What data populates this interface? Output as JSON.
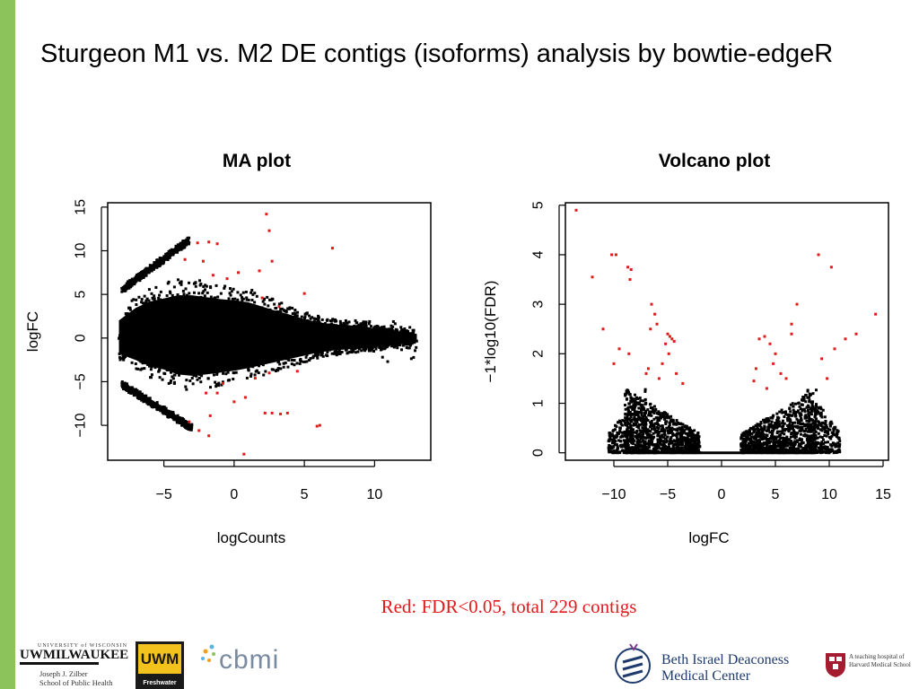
{
  "slide": {
    "title": "Sturgeon M1 vs. M2 DE contigs (isoforms) analysis by bowtie-edgeR",
    "caption": "Red: FDR<0.05, total 229 contigs",
    "accent_color": "#8cc35a",
    "highlight_color": "#e01b1b"
  },
  "chart_data": [
    {
      "type": "scatter",
      "title": "MA plot",
      "xlabel": "logCounts",
      "ylabel": "logFC",
      "xlim": [
        -9,
        14
      ],
      "ylim": [
        -14,
        15.5
      ],
      "xticks": [
        -5,
        0,
        5,
        10
      ],
      "yticks": [
        -10,
        -5,
        0,
        5,
        10,
        15
      ],
      "series": [
        {
          "color": "#000000",
          "density_envelope": {
            "x": [
              -8.2,
              -7,
              -6,
              -5,
              -4,
              -3,
              -2,
              -1,
              0,
              1,
              2,
              3,
              4,
              5,
              6,
              7,
              8,
              9,
              10,
              11,
              12,
              13
            ],
            "upper": [
              2.8,
              4.8,
              5.8,
              6.3,
              6.8,
              6.8,
              6.5,
              6.2,
              6.0,
              5.7,
              5.0,
              4.3,
              3.7,
              3.0,
              2.5,
              2.2,
              2.0,
              2.0,
              1.5,
              1.2,
              1.0,
              0.5
            ],
            "lower": [
              -2.5,
              -3.5,
              -4.5,
              -5.0,
              -5.8,
              -6.0,
              -5.8,
              -5.5,
              -5.2,
              -4.8,
              -4.3,
              -3.8,
              -3.3,
              -2.8,
              -2.3,
              -2.0,
              -1.8,
              -1.7,
              -1.4,
              -1.2,
              -0.9,
              -0.5
            ]
          },
          "upper_band": {
            "x": [
              -8.0,
              -3.2
            ],
            "y": [
              5.5,
              11.2
            ]
          },
          "lower_band": {
            "x": [
              -8.0,
              -3.0
            ],
            "y": [
              -5.3,
              -10.3
            ]
          }
        },
        {
          "color": "#e01b1b",
          "points": [
            {
              "x": 2.3,
              "y": 14.2
            },
            {
              "x": 2.5,
              "y": 12.3
            },
            {
              "x": 7.0,
              "y": 10.3
            },
            {
              "x": -2.6,
              "y": 10.9
            },
            {
              "x": -1.8,
              "y": 11.0
            },
            {
              "x": -1.2,
              "y": 10.8
            },
            {
              "x": 2.7,
              "y": 8.8
            },
            {
              "x": 1.8,
              "y": 7.7
            },
            {
              "x": 0.3,
              "y": 7.5
            },
            {
              "x": -1.5,
              "y": 7.2
            },
            {
              "x": -0.5,
              "y": 6.8
            },
            {
              "x": 5.0,
              "y": 5.1
            },
            {
              "x": 2.0,
              "y": 4.6
            },
            {
              "x": 3.2,
              "y": 3.6
            },
            {
              "x": -0.8,
              "y": -5.2
            },
            {
              "x": 1.5,
              "y": -4.6
            },
            {
              "x": 2.5,
              "y": -4.0
            },
            {
              "x": -2.0,
              "y": -6.3
            },
            {
              "x": -1.2,
              "y": -6.3
            },
            {
              "x": 0.8,
              "y": -6.8
            },
            {
              "x": 2.2,
              "y": -8.6
            },
            {
              "x": 2.7,
              "y": -8.6
            },
            {
              "x": 3.3,
              "y": -8.7
            },
            {
              "x": 3.8,
              "y": -8.6
            },
            {
              "x": 5.9,
              "y": -10.1
            },
            {
              "x": 6.1,
              "y": -10.0
            },
            {
              "x": -1.7,
              "y": -8.9
            },
            {
              "x": -3.2,
              "y": -9.6
            },
            {
              "x": -2.5,
              "y": -10.6
            },
            {
              "x": -1.8,
              "y": -11.2
            },
            {
              "x": 0.7,
              "y": -13.3
            },
            {
              "x": -3.5,
              "y": 9.0
            },
            {
              "x": -2.2,
              "y": 8.8
            },
            {
              "x": 4.5,
              "y": -3.8
            },
            {
              "x": 0.0,
              "y": -7.3
            }
          ]
        }
      ]
    },
    {
      "type": "scatter",
      "title": "Volcano plot",
      "xlabel": "logFC",
      "ylabel": "−1*log10(FDR)",
      "xlim": [
        -14.5,
        15.5
      ],
      "ylim": [
        -0.15,
        5.05
      ],
      "xticks": [
        -10,
        -5,
        0,
        5,
        10,
        15
      ],
      "yticks": [
        0,
        1,
        2,
        3,
        4,
        5
      ],
      "series": [
        {
          "color": "#000000",
          "baseline": {
            "x": [
              -8.5,
              8.7
            ],
            "y": 0
          },
          "left_wing": {
            "x": [
              -9.0,
              -2.0
            ],
            "ymax": 1.3
          },
          "right_wing": {
            "x": [
              1.8,
              8.8
            ],
            "ymax": 1.3
          },
          "outer_left_cluster": {
            "x": [
              -10.5,
              -7.0
            ],
            "ymax": 1.3
          },
          "outer_right_cluster": {
            "x": [
              8.0,
              11.0
            ],
            "ymax": 1.3
          }
        },
        {
          "color": "#e01b1b",
          "points": [
            {
              "x": -13.5,
              "y": 4.9
            },
            {
              "x": -12.0,
              "y": 3.55
            },
            {
              "x": -10.2,
              "y": 4.0
            },
            {
              "x": -9.8,
              "y": 4.0
            },
            {
              "x": -8.7,
              "y": 3.75
            },
            {
              "x": -8.4,
              "y": 3.7
            },
            {
              "x": -8.5,
              "y": 3.5
            },
            {
              "x": -11.0,
              "y": 2.5
            },
            {
              "x": -9.5,
              "y": 2.1
            },
            {
              "x": -8.6,
              "y": 2.0
            },
            {
              "x": -10.0,
              "y": 1.8
            },
            {
              "x": -6.5,
              "y": 3.0
            },
            {
              "x": -6.2,
              "y": 2.8
            },
            {
              "x": -6.0,
              "y": 2.6
            },
            {
              "x": -6.6,
              "y": 2.5
            },
            {
              "x": -5.0,
              "y": 2.4
            },
            {
              "x": -4.8,
              "y": 2.35
            },
            {
              "x": -4.6,
              "y": 2.3
            },
            {
              "x": -4.4,
              "y": 2.25
            },
            {
              "x": -5.2,
              "y": 2.2
            },
            {
              "x": -4.9,
              "y": 2.0
            },
            {
              "x": -5.5,
              "y": 1.8
            },
            {
              "x": -6.8,
              "y": 1.7
            },
            {
              "x": -5.8,
              "y": 1.5
            },
            {
              "x": -7.0,
              "y": 1.6
            },
            {
              "x": -4.2,
              "y": 1.6
            },
            {
              "x": -3.6,
              "y": 1.4
            },
            {
              "x": 3.5,
              "y": 2.3
            },
            {
              "x": 4.0,
              "y": 2.35
            },
            {
              "x": 4.5,
              "y": 2.2
            },
            {
              "x": 5.0,
              "y": 2.0
            },
            {
              "x": 4.8,
              "y": 1.8
            },
            {
              "x": 3.2,
              "y": 1.7
            },
            {
              "x": 5.5,
              "y": 1.6
            },
            {
              "x": 6.0,
              "y": 1.5
            },
            {
              "x": 6.5,
              "y": 2.4
            },
            {
              "x": 7.0,
              "y": 3.0
            },
            {
              "x": 6.5,
              "y": 2.6
            },
            {
              "x": 9.0,
              "y": 4.0
            },
            {
              "x": 10.2,
              "y": 3.75
            },
            {
              "x": 14.3,
              "y": 2.8
            },
            {
              "x": 12.5,
              "y": 2.4
            },
            {
              "x": 11.5,
              "y": 2.3
            },
            {
              "x": 9.3,
              "y": 1.9
            },
            {
              "x": 10.5,
              "y": 2.1
            },
            {
              "x": 9.8,
              "y": 1.5
            },
            {
              "x": 3.0,
              "y": 1.45
            },
            {
              "x": 4.2,
              "y": 1.3
            }
          ]
        }
      ]
    }
  ],
  "logos": {
    "uwm_small": "UNIVERSITY of WISCONSIN",
    "uwm_name": "UWMILWAUKEE",
    "zilber_line1": "Joseph J. Zilber",
    "zilber_line2": "School of Public Health",
    "uwm_box": "UWM",
    "freshwater": "Freshwater",
    "cbmi": "cbmi",
    "bidmc_line1": "Beth Israel Deaconess",
    "bidmc_line2": "Medical Center",
    "hms_line1": "A teaching hospital of",
    "hms_line2": "Harvard Medical School"
  }
}
